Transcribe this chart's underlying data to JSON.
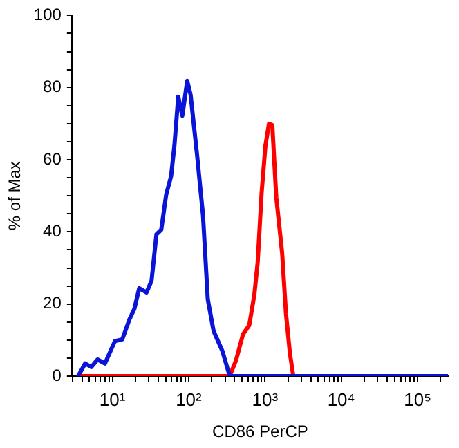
{
  "chart_data": {
    "type": "line",
    "xlabel": "CD86 PerCP",
    "ylabel": "% of Max",
    "log": "x",
    "grid": false,
    "marker": "none",
    "line_style": "solid",
    "xlim": [
      3,
      250000
    ],
    "ylim": [
      0,
      100
    ],
    "xticks": [
      {
        "value": 3,
        "label": null
      },
      {
        "value": 4,
        "label": null
      },
      {
        "value": 5,
        "label": null
      },
      {
        "value": 6,
        "label": null
      },
      {
        "value": 7,
        "label": null
      },
      {
        "value": 8,
        "label": null
      },
      {
        "value": 9,
        "label": null
      },
      {
        "value": 10,
        "label": "10¹"
      },
      {
        "value": 20,
        "label": null
      },
      {
        "value": 30,
        "label": null
      },
      {
        "value": 40,
        "label": null
      },
      {
        "value": 50,
        "label": null
      },
      {
        "value": 60,
        "label": null
      },
      {
        "value": 70,
        "label": null
      },
      {
        "value": 80,
        "label": null
      },
      {
        "value": 90,
        "label": null
      },
      {
        "value": 100,
        "label": "10²"
      },
      {
        "value": 200,
        "label": null
      },
      {
        "value": 300,
        "label": null
      },
      {
        "value": 400,
        "label": null
      },
      {
        "value": 500,
        "label": null
      },
      {
        "value": 600,
        "label": null
      },
      {
        "value": 700,
        "label": null
      },
      {
        "value": 800,
        "label": null
      },
      {
        "value": 900,
        "label": null
      },
      {
        "value": 1000,
        "label": "10³"
      },
      {
        "value": 2000,
        "label": null
      },
      {
        "value": 3000,
        "label": null
      },
      {
        "value": 4000,
        "label": null
      },
      {
        "value": 5000,
        "label": null
      },
      {
        "value": 6000,
        "label": null
      },
      {
        "value": 7000,
        "label": null
      },
      {
        "value": 8000,
        "label": null
      },
      {
        "value": 9000,
        "label": null
      },
      {
        "value": 10000,
        "label": "10⁴"
      },
      {
        "value": 20000,
        "label": null
      },
      {
        "value": 30000,
        "label": null
      },
      {
        "value": 40000,
        "label": null
      },
      {
        "value": 50000,
        "label": null
      },
      {
        "value": 60000,
        "label": null
      },
      {
        "value": 70000,
        "label": null
      },
      {
        "value": 80000,
        "label": null
      },
      {
        "value": 90000,
        "label": null
      },
      {
        "value": 100000,
        "label": "10⁵"
      },
      {
        "value": 200000,
        "label": null
      }
    ],
    "yticks": [
      0,
      {
        "value": 5,
        "label": null
      },
      {
        "value": 10,
        "label": null
      },
      {
        "value": 15,
        "label": null
      },
      20,
      {
        "value": 25,
        "label": null
      },
      {
        "value": 30,
        "label": null
      },
      {
        "value": 35,
        "label": null
      },
      40,
      {
        "value": 45,
        "label": null
      },
      {
        "value": 50,
        "label": null
      },
      {
        "value": 55,
        "label": null
      },
      60,
      {
        "value": 65,
        "label": null
      },
      {
        "value": 70,
        "label": null
      },
      {
        "value": 75,
        "label": null
      },
      80,
      {
        "value": 85,
        "label": null
      },
      {
        "value": 90,
        "label": null
      },
      {
        "value": 95,
        "label": null
      },
      100
    ],
    "series": [
      {
        "color": "#0a14d8",
        "x": [
          3.56,
          4.4,
          5.3,
          6.4,
          8.0,
          10.8,
          13.5,
          16.8,
          19.4,
          22.5,
          28,
          32.6,
          37.8,
          43.7,
          50.8,
          58.8,
          65,
          73,
          82.6,
          95.7,
          106,
          129,
          154,
          178,
          212,
          276,
          345,
          250000
        ],
        "values": [
          0,
          3.5,
          2.5,
          4.6,
          3.5,
          9.7,
          10.2,
          15.8,
          18.6,
          24.4,
          23.2,
          26.4,
          39.3,
          40.6,
          50.4,
          55.4,
          63.9,
          77.5,
          72.2,
          81.9,
          78,
          61.2,
          44.6,
          21.3,
          12.5,
          7,
          0,
          0
        ]
      },
      {
        "color": "#ff0000",
        "x": [
          3.56,
          345,
          418,
          515,
          622,
          725,
          802,
          904,
          1014,
          1128,
          1248,
          1406,
          1679,
          1884,
          2123,
          2350
        ],
        "values": [
          0,
          0,
          4.4,
          11.6,
          14.1,
          22.5,
          31.5,
          50.9,
          63.9,
          70,
          69.6,
          49.6,
          34.1,
          17.4,
          6.3,
          0
        ]
      }
    ]
  }
}
